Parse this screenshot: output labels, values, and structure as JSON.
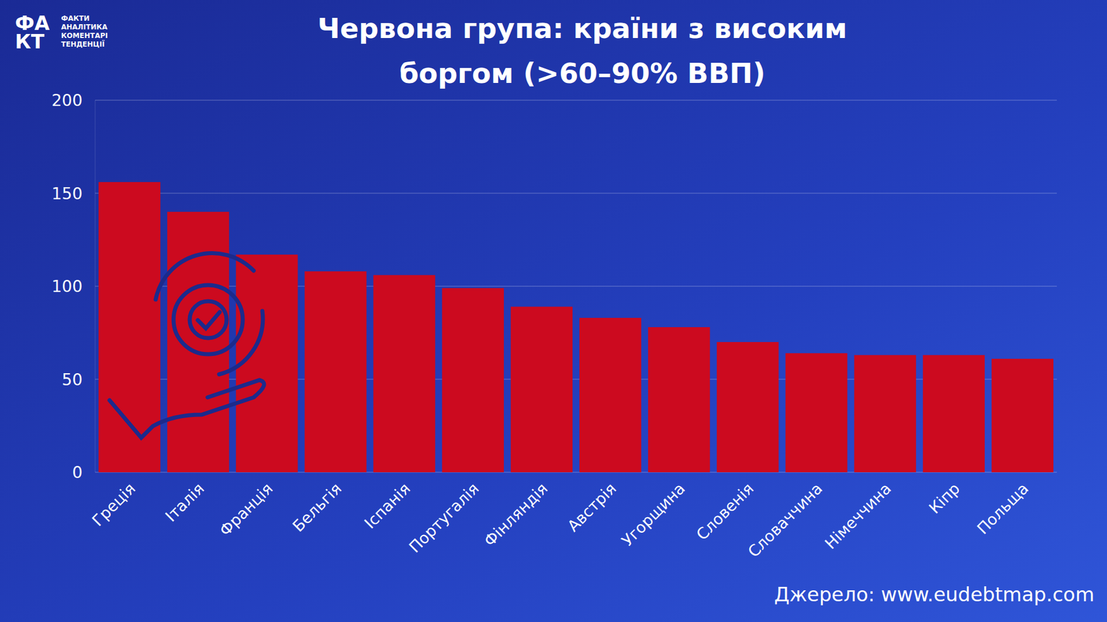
{
  "chart_data": {
    "type": "bar",
    "title": "Червона група: країни з високим боргом (>60–90% ВВП)",
    "categories": [
      "Греція",
      "Італія",
      "Франція",
      "Бельгія",
      "Іспанія",
      "Португалія",
      "Фінляндія",
      "Австрія",
      "Угорщина",
      "Словенія",
      "Словаччина",
      "Німеччина",
      "Кіпр",
      "Польща"
    ],
    "values": [
      156,
      140,
      117,
      108,
      106,
      99,
      89,
      83,
      78,
      70,
      64,
      63,
      63,
      61
    ],
    "color": "#cc0a1f",
    "ylim": [
      0,
      200
    ],
    "yticks": [
      0,
      50,
      100,
      150,
      200
    ],
    "grid": true,
    "source": "Джерело: www.eudebtmap.com",
    "logo": {
      "mark": [
        "ФА",
        "КТ"
      ],
      "lines": [
        "ФАКТИ",
        "АНАЛІТИКА",
        "КОМЕНТАРІ",
        "ТЕНДЕНЦІЇ"
      ]
    }
  }
}
